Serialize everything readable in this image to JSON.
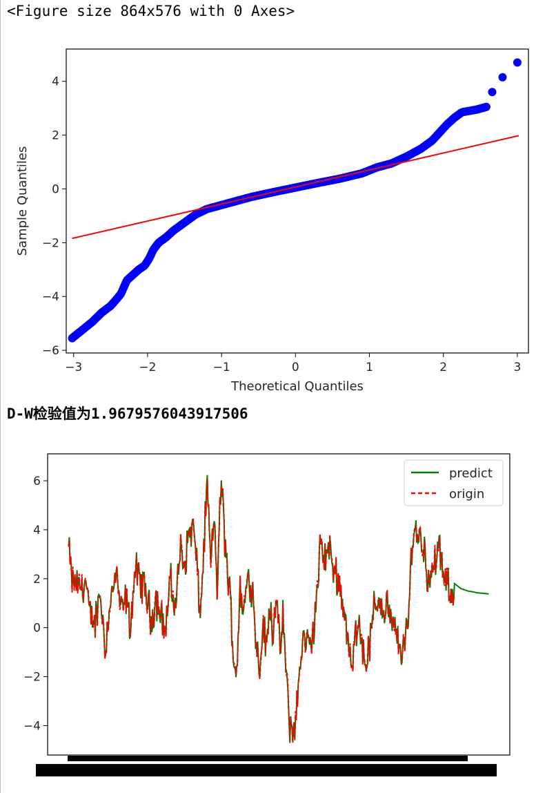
{
  "output": {
    "figure_repr": "<Figure size 864x576 with 0 Axes>",
    "dw_text": "D-W检验值为1.9679576043917506"
  },
  "colors": {
    "points": "#0000ff",
    "ref_line": "#ff0000",
    "predict": "#008000",
    "origin": "#ff0000",
    "axes": "#000000"
  },
  "chart_data": [
    {
      "type": "scatter",
      "title": "",
      "xlabel": "Theoretical Quantiles",
      "ylabel": "Sample Quantiles",
      "xlim": [
        -3.1,
        3.15
      ],
      "ylim": [
        -6.1,
        5.2
      ],
      "xticks": [
        -3,
        -2,
        -1,
        0,
        1,
        2,
        3
      ],
      "yticks": [
        -6,
        -4,
        -2,
        0,
        2,
        4
      ],
      "xtick_labels": [
        "−3",
        "−2",
        "−1",
        "0",
        "1",
        "2",
        "3"
      ],
      "ytick_labels": [
        "−6",
        "−4",
        "−2",
        "0",
        "2",
        "4"
      ],
      "grid": false,
      "series": [
        {
          "kind": "points",
          "sample_quantile_curve": [
            [
              -3.02,
              -5.55
            ],
            [
              -2.75,
              -4.95
            ],
            [
              -2.62,
              -4.6
            ],
            [
              -2.5,
              -4.35
            ],
            [
              -2.42,
              -4.1
            ],
            [
              -2.36,
              -3.9
            ],
            [
              -2.28,
              -3.4
            ],
            [
              -2.2,
              -3.2
            ],
            [
              -2.12,
              -3.0
            ],
            [
              -2.04,
              -2.85
            ],
            [
              -1.98,
              -2.6
            ],
            [
              -1.92,
              -2.25
            ],
            [
              -1.85,
              -2.0
            ],
            [
              -1.75,
              -1.8
            ],
            [
              -1.65,
              -1.55
            ],
            [
              -1.5,
              -1.25
            ],
            [
              -1.35,
              -0.95
            ],
            [
              -1.2,
              -0.75
            ],
            [
              -1.0,
              -0.6
            ],
            [
              -0.8,
              -0.45
            ],
            [
              -0.6,
              -0.3
            ],
            [
              -0.3,
              -0.12
            ],
            [
              0.0,
              0.05
            ],
            [
              0.3,
              0.22
            ],
            [
              0.6,
              0.38
            ],
            [
              0.9,
              0.58
            ],
            [
              1.1,
              0.8
            ],
            [
              1.3,
              0.95
            ],
            [
              1.5,
              1.2
            ],
            [
              1.7,
              1.5
            ],
            [
              1.85,
              1.8
            ],
            [
              1.95,
              2.1
            ],
            [
              2.05,
              2.4
            ],
            [
              2.15,
              2.65
            ],
            [
              2.25,
              2.85
            ],
            [
              2.45,
              2.95
            ],
            [
              2.58,
              3.05
            ]
          ],
          "outliers": [
            [
              2.66,
              3.6
            ],
            [
              2.8,
              4.15
            ],
            [
              3.0,
              4.7
            ]
          ],
          "n_points": 420
        },
        {
          "kind": "line",
          "fit_line": [
            [
              -3.02,
              -1.84
            ],
            [
              3.02,
              1.98
            ]
          ]
        }
      ]
    },
    {
      "type": "line",
      "title": "",
      "xlabel": "",
      "ylabel": "",
      "ylim": [
        -5.2,
        7.1
      ],
      "yticks": [
        -4,
        -2,
        0,
        2,
        4,
        6
      ],
      "ytick_labels": [
        "−4",
        "−2",
        "0",
        "2",
        "4",
        "6"
      ],
      "x_tick_labels_overplotted": true,
      "legend": {
        "position": "top-right",
        "entries": [
          "predict",
          "origin"
        ]
      },
      "n_points": 600,
      "n_forecast": 45,
      "series": [
        {
          "name": "origin",
          "style": "dashed",
          "anchors": [
            [
              0,
              3.25
            ],
            [
              5,
              1.9
            ],
            [
              15,
              1.7
            ],
            [
              25,
              1.8
            ],
            [
              30,
              0.5
            ],
            [
              38,
              0.2
            ],
            [
              45,
              1.5
            ],
            [
              52,
              -0.8
            ],
            [
              60,
              1.1
            ],
            [
              68,
              2.2
            ],
            [
              75,
              0.6
            ],
            [
              82,
              1.2
            ],
            [
              88,
              0.0
            ],
            [
              95,
              2.4
            ],
            [
              102,
              1.9
            ],
            [
              110,
              1.5
            ],
            [
              118,
              0.3
            ],
            [
              125,
              1.2
            ],
            [
              132,
              0.6
            ],
            [
              138,
              -0.2
            ],
            [
              145,
              1.9
            ],
            [
              152,
              0.8
            ],
            [
              160,
              3.3
            ],
            [
              165,
              2.4
            ],
            [
              172,
              3.9
            ],
            [
              178,
              4.1
            ],
            [
              183,
              2.6
            ],
            [
              188,
              0.4
            ],
            [
              193,
              3.2
            ],
            [
              198,
              5.9
            ],
            [
              203,
              2.5
            ],
            [
              208,
              4.5
            ],
            [
              212,
              1.6
            ],
            [
              218,
              6.1
            ],
            [
              222,
              4.1
            ],
            [
              227,
              2.2
            ],
            [
              232,
              0.7
            ],
            [
              236,
              -1.4
            ],
            [
              240,
              -1.7
            ],
            [
              245,
              1.6
            ],
            [
              250,
              0.6
            ],
            [
              255,
              2.0
            ],
            [
              262,
              1.8
            ],
            [
              268,
              -0.6
            ],
            [
              273,
              -1.7
            ],
            [
              278,
              0.3
            ],
            [
              282,
              -1.0
            ],
            [
              287,
              1.0
            ],
            [
              292,
              -0.2
            ],
            [
              296,
              1.4
            ],
            [
              302,
              -1.1
            ],
            [
              306,
              0.5
            ],
            [
              310,
              -1.6
            ],
            [
              315,
              -3.8
            ],
            [
              320,
              -4.3
            ],
            [
              325,
              -3.6
            ],
            [
              330,
              -1.7
            ],
            [
              335,
              -0.4
            ],
            [
              340,
              -0.6
            ],
            [
              345,
              -0.8
            ],
            [
              350,
              0.0
            ],
            [
              355,
              1.5
            ],
            [
              360,
              3.5
            ],
            [
              365,
              2.8
            ],
            [
              372,
              3.3
            ],
            [
              378,
              2.4
            ],
            [
              385,
              2.1
            ],
            [
              390,
              1.2
            ],
            [
              395,
              0.5
            ],
            [
              400,
              -0.9
            ],
            [
              405,
              -1.8
            ],
            [
              410,
              -0.1
            ],
            [
              415,
              0.5
            ],
            [
              420,
              -0.9
            ],
            [
              425,
              -1.4
            ],
            [
              430,
              -0.7
            ],
            [
              435,
              0.6
            ],
            [
              440,
              1.0
            ],
            [
              445,
              1.2
            ],
            [
              450,
              0.5
            ],
            [
              455,
              1.1
            ],
            [
              460,
              0.1
            ],
            [
              465,
              0.0
            ],
            [
              470,
              -0.6
            ],
            [
              475,
              -0.9
            ],
            [
              480,
              -0.7
            ],
            [
              485,
              0.1
            ],
            [
              490,
              3.5
            ],
            [
              495,
              4.0
            ],
            [
              502,
              3.7
            ],
            [
              508,
              3.2
            ],
            [
              512,
              2.2
            ],
            [
              518,
              2.0
            ],
            [
              525,
              3.0
            ],
            [
              530,
              3.2
            ],
            [
              535,
              2.0
            ],
            [
              540,
              1.8
            ],
            [
              545,
              1.5
            ],
            [
              550,
              1.1
            ]
          ]
        },
        {
          "name": "predict",
          "style": "solid",
          "forecast_tail": [
            [
              551,
              1.8
            ],
            [
              560,
              1.6
            ],
            [
              570,
              1.5
            ],
            [
              585,
              1.42
            ],
            [
              600,
              1.38
            ]
          ]
        }
      ]
    }
  ]
}
